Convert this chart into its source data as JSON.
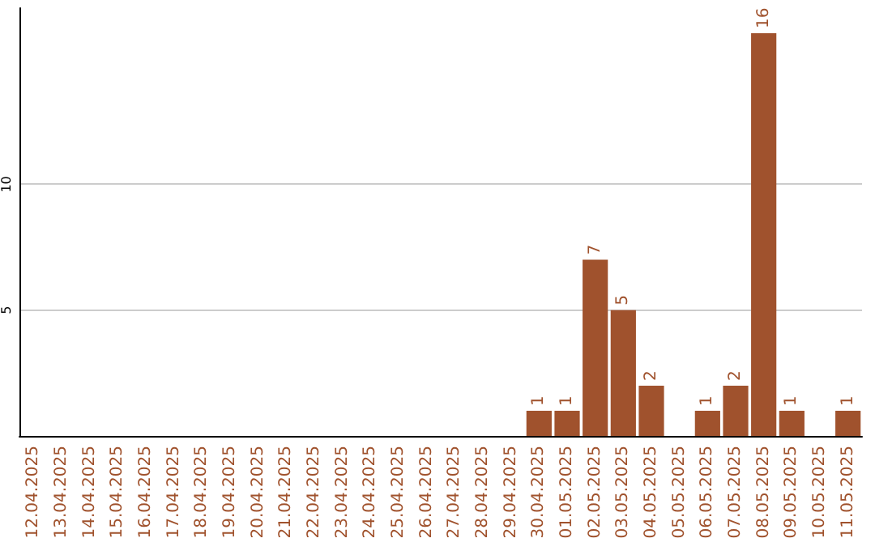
{
  "chart_data": {
    "type": "bar",
    "categories": [
      "12.04.2025",
      "13.04.2025",
      "14.04.2025",
      "15.04.2025",
      "16.04.2025",
      "17.04.2025",
      "18.04.2025",
      "19.04.2025",
      "20.04.2025",
      "21.04.2025",
      "22.04.2025",
      "23.04.2025",
      "24.04.2025",
      "25.04.2025",
      "26.04.2025",
      "27.04.2025",
      "28.04.2025",
      "29.04.2025",
      "30.04.2025",
      "01.05.2025",
      "02.05.2025",
      "03.05.2025",
      "04.05.2025",
      "05.05.2025",
      "06.05.2025",
      "07.05.2025",
      "08.05.2025",
      "09.05.2025",
      "10.05.2025",
      "11.05.2025"
    ],
    "values": [
      0,
      0,
      0,
      0,
      0,
      0,
      0,
      0,
      0,
      0,
      0,
      0,
      0,
      0,
      0,
      0,
      0,
      0,
      1,
      1,
      7,
      5,
      2,
      0,
      1,
      2,
      16,
      1,
      0,
      1
    ],
    "value_labels": [
      null,
      null,
      null,
      null,
      null,
      null,
      null,
      null,
      null,
      null,
      null,
      null,
      null,
      null,
      null,
      null,
      null,
      null,
      "1",
      "1",
      "7",
      "5",
      "2",
      null,
      "1",
      "2",
      "16",
      "1",
      null,
      "1"
    ],
    "color": "#a0522d",
    "ylim": [
      0,
      17
    ],
    "yticks": [
      5,
      10
    ],
    "grid": "y"
  }
}
